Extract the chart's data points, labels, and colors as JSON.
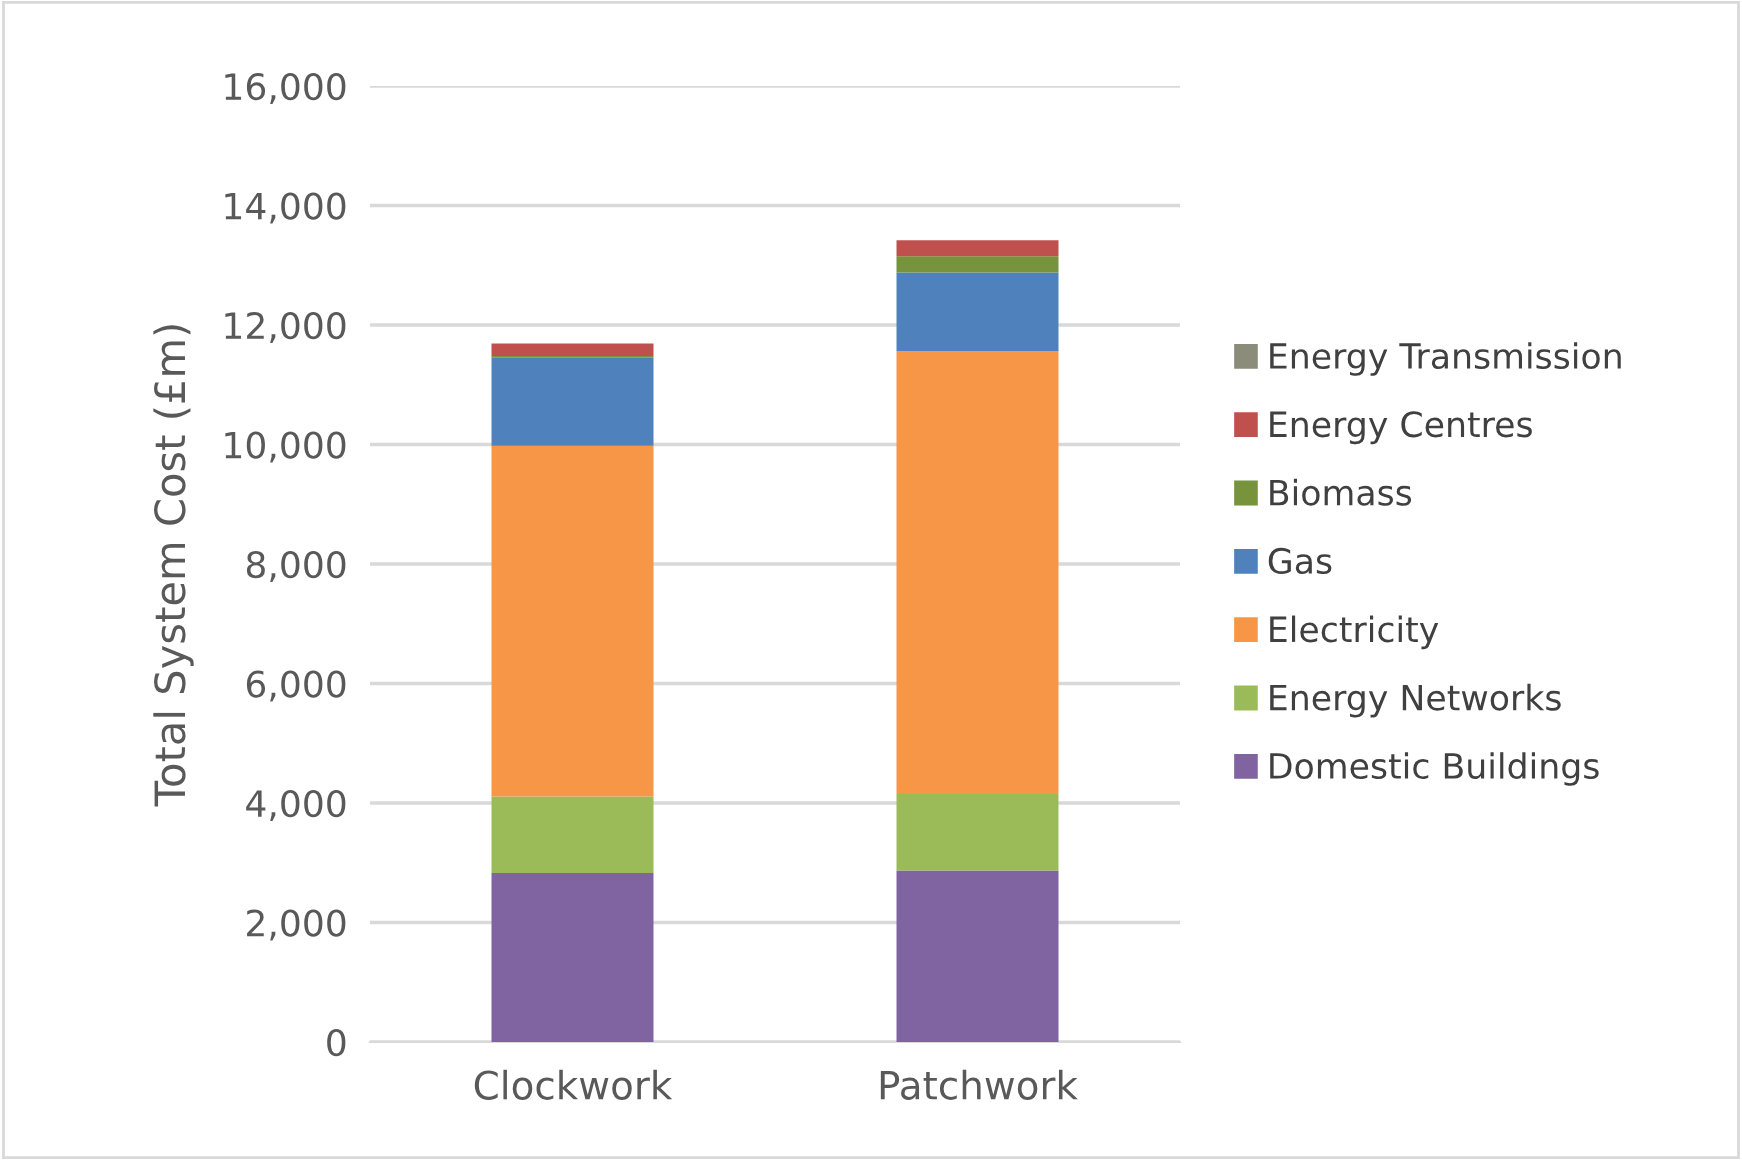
{
  "chart_data": {
    "type": "bar",
    "stacked": true,
    "ylabel": "Total System Cost (£m)",
    "categories": [
      "Clockwork",
      "Patchwork"
    ],
    "series": [
      {
        "name": "Domestic Buildings",
        "color": "#8064a2",
        "values": [
          2830,
          2870
        ]
      },
      {
        "name": "Energy Networks",
        "color": "#9bbb59",
        "values": [
          1280,
          1280
        ]
      },
      {
        "name": "Electricity",
        "color": "#f79646",
        "values": [
          5870,
          7410
        ]
      },
      {
        "name": "Gas",
        "color": "#4f81bd",
        "values": [
          1470,
          1320
        ]
      },
      {
        "name": "Biomass",
        "color": "#77933c",
        "values": [
          30,
          270
        ]
      },
      {
        "name": "Energy Centres",
        "color": "#c0504d",
        "values": [
          210,
          270
        ]
      },
      {
        "name": "Energy Transmission",
        "color": "#8c8c7a",
        "values": [
          0,
          0
        ]
      }
    ],
    "ylim": [
      0,
      16000
    ],
    "yticks": [
      {
        "value": 0,
        "label": "0"
      },
      {
        "value": 2000,
        "label": "2,000"
      },
      {
        "value": 4000,
        "label": "4,000"
      },
      {
        "value": 6000,
        "label": "6,000"
      },
      {
        "value": 8000,
        "label": "8,000"
      },
      {
        "value": 10000,
        "label": "10,000"
      },
      {
        "value": 12000,
        "label": "12,000"
      },
      {
        "value": 14000,
        "label": "14,000"
      },
      {
        "value": 16000,
        "label": "16,000"
      }
    ],
    "grid": "y",
    "legend": "right"
  }
}
